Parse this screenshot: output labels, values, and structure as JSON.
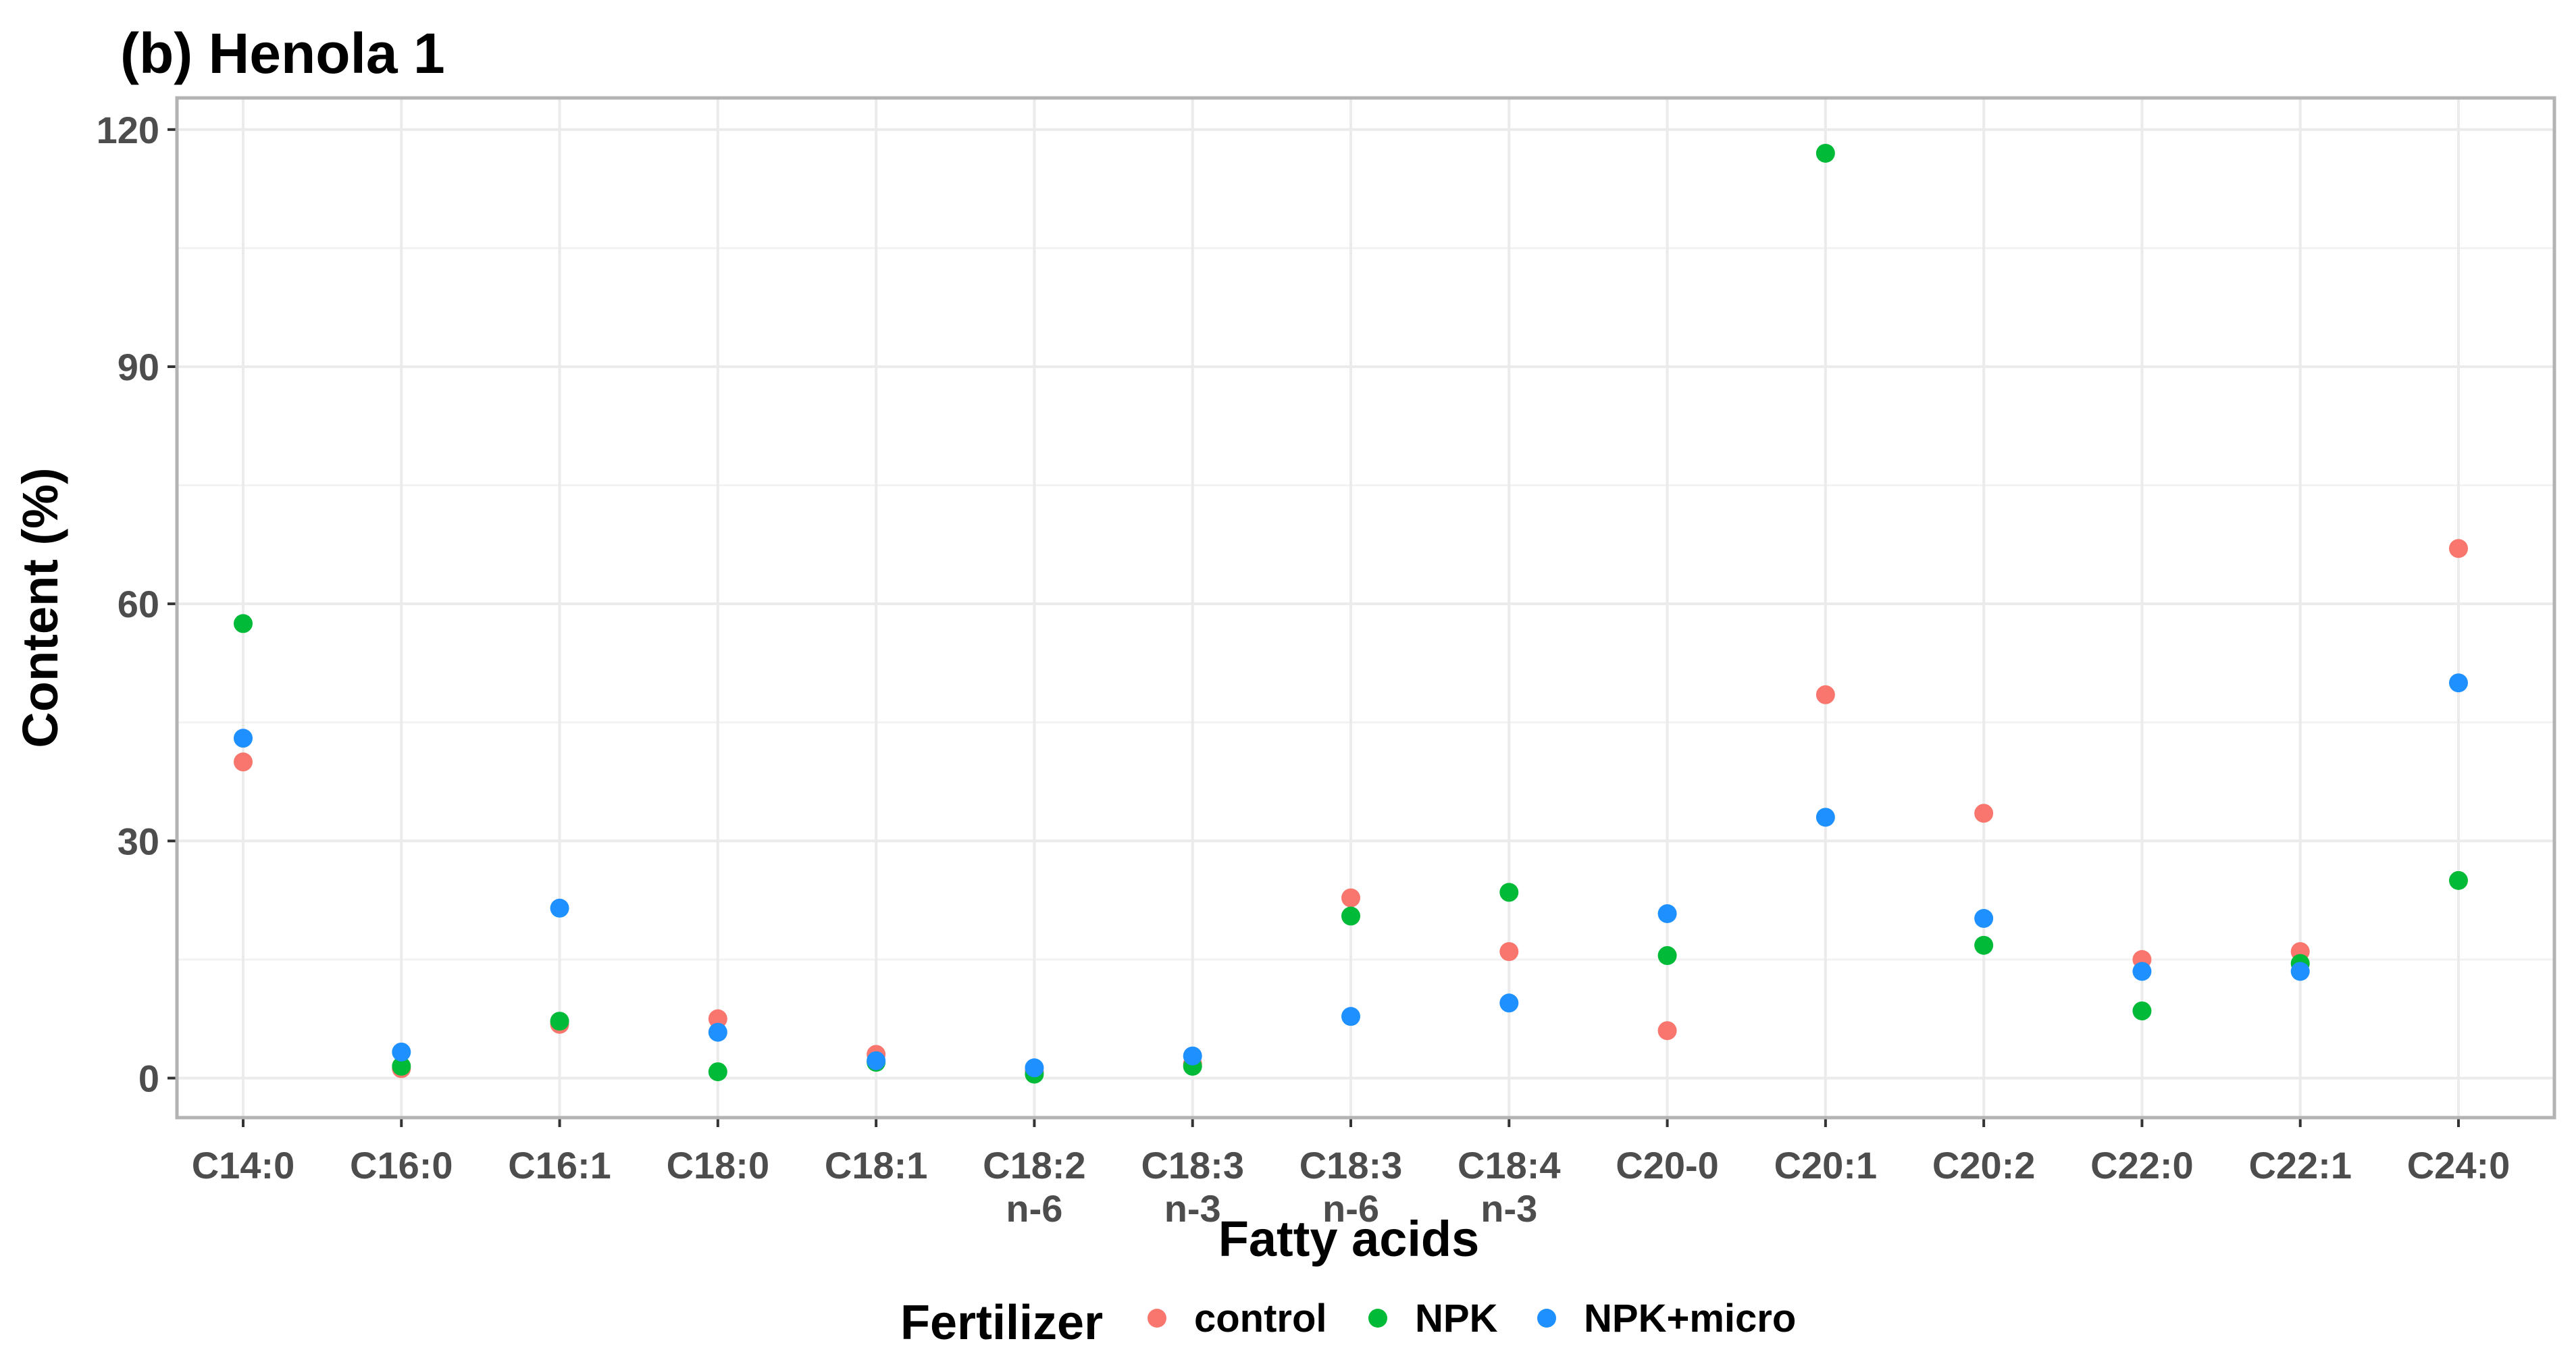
{
  "chart_data": {
    "type": "scatter",
    "title": "(b) Henola 1",
    "xlabel": "Fatty acids",
    "ylabel": "Content (%)",
    "ylim": [
      -5,
      124
    ],
    "yticks": [
      0,
      30,
      60,
      90,
      120
    ],
    "grid": true,
    "categories": [
      [
        "C14:0"
      ],
      [
        "C16:0"
      ],
      [
        "C16:1"
      ],
      [
        "C18:0"
      ],
      [
        "C18:1"
      ],
      [
        "C18:2",
        "n-6"
      ],
      [
        "C18:3",
        "n-3"
      ],
      [
        "C18:3",
        "n-6"
      ],
      [
        "C18:4",
        "n-3"
      ],
      [
        "C20-0"
      ],
      [
        "C20:1"
      ],
      [
        "C20:2"
      ],
      [
        "C22:0"
      ],
      [
        "C22:1"
      ],
      [
        "C24:0"
      ]
    ],
    "legend": {
      "title": "Fertilizer",
      "position": "bottom"
    },
    "series": [
      {
        "name": "control",
        "color": "#F8766D",
        "values": [
          40.0,
          1.2,
          6.8,
          7.5,
          3.0,
          0.8,
          1.8,
          22.8,
          16.0,
          6.0,
          48.5,
          33.5,
          15.0,
          16.0,
          67.0
        ]
      },
      {
        "name": "NPK",
        "color": "#00BA38",
        "values": [
          57.5,
          1.5,
          7.2,
          0.8,
          2.0,
          0.5,
          1.5,
          20.5,
          23.5,
          15.5,
          117.0,
          16.8,
          8.5,
          14.5,
          25.0
        ]
      },
      {
        "name": "NPK+micro",
        "color": "#1E90FF",
        "values": [
          43.0,
          3.3,
          21.5,
          5.8,
          2.2,
          1.3,
          2.8,
          7.8,
          9.5,
          20.8,
          33.0,
          20.2,
          13.5,
          13.5,
          50.0
        ]
      }
    ]
  }
}
